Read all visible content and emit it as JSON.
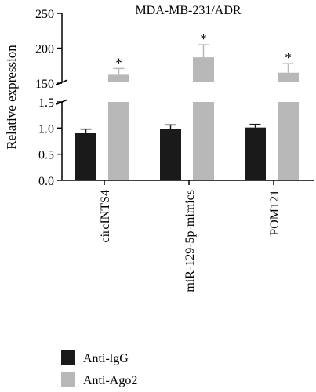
{
  "chart_data": {
    "type": "bar",
    "title": "MDA-MB-231/ADR",
    "ylabel": "Relative expression",
    "xlabel": "",
    "categories": [
      "circINTS4",
      "miR-129-5p-mimics",
      "POM121"
    ],
    "series": [
      {
        "name": "Anti-lgG",
        "color": "#1a1a1a",
        "values": [
          0.9,
          0.99,
          1.01
        ],
        "errors": [
          0.08,
          0.07,
          0.06
        ],
        "sig": [
          "",
          "",
          ""
        ]
      },
      {
        "name": "Anti-Ago2",
        "color": "#b8b8b8",
        "values": [
          162,
          187,
          165
        ],
        "errors": [
          9,
          18,
          13
        ],
        "sig": [
          "*",
          "*",
          "*"
        ]
      }
    ],
    "axis_break": {
      "lower": {
        "range": [
          0,
          1.5
        ],
        "ticks": [
          "0.0",
          "0.5",
          "1.0",
          "1.5"
        ]
      },
      "upper": {
        "range": [
          140,
          250
        ],
        "ticks": [
          "150",
          "200",
          "250"
        ]
      }
    },
    "legend_position": "bottom-left"
  }
}
